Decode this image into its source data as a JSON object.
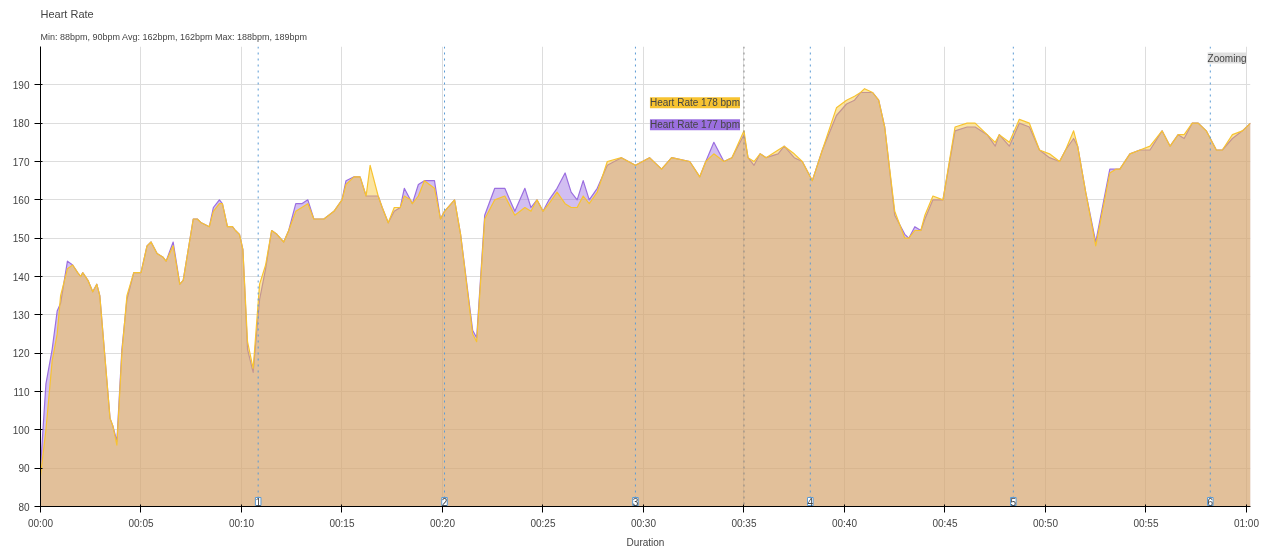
{
  "chart_data": {
    "type": "area",
    "title": "Heart Rate",
    "subtitle": "Min: 88bpm, 90bpm Avg: 162bpm, 162bpm Max: 188bpm, 189bpm",
    "xlabel": "Duration",
    "x": [
      0,
      0.27,
      0.58,
      0.83,
      1.0,
      1.34,
      1.6,
      1.85,
      2.0,
      2.1,
      2.36,
      2.6,
      2.8,
      2.95,
      3.3,
      3.46,
      3.6,
      3.8,
      4.05,
      4.3,
      4.64,
      5.0,
      5.3,
      5.5,
      5.8,
      6.1,
      6.25,
      6.6,
      6.93,
      7.1,
      7.6,
      7.8,
      8.0,
      8.4,
      8.6,
      8.9,
      9.05,
      9.3,
      9.55,
      9.7,
      9.9,
      10.07,
      10.3,
      10.58,
      10.9,
      11.2,
      11.5,
      11.76,
      12.1,
      12.35,
      12.7,
      13.0,
      13.3,
      13.6,
      14.1,
      14.6,
      15.0,
      15.2,
      15.6,
      15.9,
      16.2,
      16.4,
      16.8,
      17.0,
      17.3,
      17.6,
      17.9,
      18.1,
      18.4,
      18.5,
      18.8,
      19.1,
      19.6,
      19.9,
      20.1,
      20.6,
      20.9,
      21.5,
      21.7,
      22.1,
      22.6,
      23.1,
      23.6,
      24.1,
      24.4,
      24.7,
      25.0,
      25.3,
      25.7,
      26.1,
      26.4,
      26.7,
      27.0,
      27.3,
      27.7,
      28.2,
      28.9,
      29.6,
      30.3,
      30.9,
      31.4,
      32.3,
      32.8,
      33.1,
      33.5,
      34.0,
      34.4,
      35.0,
      35.2,
      35.5,
      35.8,
      36.1,
      36.7,
      37.0,
      37.5,
      37.9,
      38.4,
      38.9,
      39.6,
      40.1,
      40.5,
      40.8,
      41.0,
      41.4,
      41.7,
      42.0,
      42.5,
      43.0,
      43.2,
      43.5,
      43.8,
      44.0,
      44.4,
      44.9,
      45.5,
      46.1,
      46.5,
      47.1,
      47.5,
      47.7,
      48.2,
      48.7,
      49.2,
      49.7,
      50.2,
      50.7,
      51.0,
      51.4,
      51.6,
      52.0,
      52.5,
      53.2,
      53.5,
      53.7,
      54.2,
      54.7,
      55.2,
      55.8,
      56.2,
      56.6,
      56.9,
      57.3,
      57.6,
      58.0,
      58.5,
      58.8,
      59.3,
      59.8,
      60.2
    ],
    "series": [
      {
        "color": "#9b6fe0",
        "values": [
          90,
          112,
          121,
          131,
          133,
          144,
          143,
          141,
          140,
          141,
          139,
          136,
          138,
          135,
          113,
          103,
          101,
          97,
          121,
          134,
          141,
          141,
          148,
          149,
          146,
          145,
          144,
          149,
          138,
          139,
          155,
          155,
          154,
          153,
          158,
          160,
          159,
          153,
          153,
          152,
          151,
          147,
          121,
          115,
          134,
          142,
          152,
          151,
          149,
          152,
          159,
          159,
          160,
          155,
          155,
          157,
          160,
          165,
          166,
          166,
          161,
          161,
          161,
          158,
          154,
          157,
          158,
          163,
          160,
          159,
          164,
          165,
          165,
          155,
          157,
          160,
          151,
          126,
          124,
          156,
          163,
          163,
          157,
          163,
          158,
          160,
          157,
          160,
          163,
          167,
          162,
          160,
          165,
          160,
          163,
          169,
          171,
          169,
          171,
          168,
          171,
          170,
          166,
          170,
          175,
          170,
          171,
          177,
          171,
          169,
          172,
          171,
          172,
          174,
          171,
          170,
          165,
          173,
          182,
          185,
          186,
          188,
          188,
          188,
          186,
          179,
          156,
          151,
          150,
          153,
          152,
          155,
          160,
          160,
          178,
          179,
          179,
          177,
          174,
          177,
          174,
          180,
          179,
          173,
          171,
          170,
          173,
          176,
          174,
          162,
          149,
          168,
          168,
          168,
          172,
          173,
          173,
          178,
          174,
          177,
          176,
          180,
          180,
          178,
          173,
          173,
          176,
          178,
          180
        ]
      },
      {
        "color": "#f7c331",
        "values": [
          88,
          100,
          118,
          125,
          135,
          142,
          143,
          141,
          140,
          141,
          139,
          136,
          138,
          135,
          113,
          103,
          101,
          96,
          120,
          135,
          141,
          141,
          148,
          149,
          146,
          145,
          144,
          148,
          138,
          139,
          155,
          155,
          154,
          153,
          157,
          159,
          159,
          153,
          153,
          152,
          151,
          147,
          123,
          116,
          138,
          143,
          152,
          151,
          149,
          152,
          157,
          158,
          159,
          155,
          155,
          157,
          160,
          164,
          166,
          166,
          161,
          169,
          161,
          158,
          154,
          158,
          158,
          161,
          160,
          159,
          161,
          165,
          163,
          155,
          157,
          160,
          151,
          125,
          123,
          155,
          160,
          161,
          156,
          158,
          157,
          160,
          157,
          159,
          162,
          159,
          158,
          158,
          161,
          159,
          162,
          170,
          171,
          169,
          171,
          168,
          171,
          170,
          166,
          170,
          172,
          170,
          171,
          178,
          171,
          170,
          172,
          171,
          173,
          174,
          172,
          170,
          165,
          173,
          184,
          186,
          187,
          188,
          189,
          188,
          186,
          179,
          157,
          150,
          150,
          152,
          152,
          156,
          161,
          160,
          179,
          180,
          180,
          177,
          175,
          177,
          175,
          181,
          180,
          173,
          172,
          170,
          173,
          178,
          174,
          162,
          148,
          167,
          168,
          168,
          172,
          173,
          174,
          178,
          174,
          177,
          177,
          180,
          180,
          178,
          173,
          173,
          177,
          178,
          180
        ]
      }
    ],
    "xlim": [
      0,
      60.2
    ],
    "ylim": [
      80,
      200
    ],
    "xticks": [
      {
        "value": 0,
        "label": "00:00"
      },
      {
        "value": 5,
        "label": "00:05"
      },
      {
        "value": 10,
        "label": "00:10"
      },
      {
        "value": 15,
        "label": "00:15"
      },
      {
        "value": 20,
        "label": "00:20"
      },
      {
        "value": 25,
        "label": "00:25"
      },
      {
        "value": 30,
        "label": "00:30"
      },
      {
        "value": 35,
        "label": "00:35"
      },
      {
        "value": 40,
        "label": "00:40"
      },
      {
        "value": 45,
        "label": "00:45"
      },
      {
        "value": 50,
        "label": "00:50"
      },
      {
        "value": 55,
        "label": "00:55"
      },
      {
        "value": 60,
        "label": "01:00"
      }
    ],
    "yticks": [
      80,
      90,
      100,
      110,
      120,
      130,
      140,
      150,
      160,
      170,
      180,
      190
    ],
    "grid": true,
    "ref_lines": [
      {
        "axis": "x",
        "value": 10.83,
        "color": "#5b9bd5",
        "line_style": "dotted"
      },
      {
        "axis": "x",
        "value": 20.1,
        "color": "#5b9bd5",
        "line_style": "dotted"
      },
      {
        "axis": "x",
        "value": 29.6,
        "color": "#5b9bd5",
        "line_style": "dotted"
      },
      {
        "axis": "x",
        "value": 38.3,
        "color": "#5b9bd5",
        "line_style": "dotted"
      },
      {
        "axis": "x",
        "value": 48.4,
        "color": "#5b9bd5",
        "line_style": "dotted"
      },
      {
        "axis": "x",
        "value": 58.2,
        "color": "#5b9bd5",
        "line_style": "dotted"
      },
      {
        "axis": "x",
        "value": 35,
        "color": "#888888",
        "line_style": "dotted"
      }
    ],
    "annotations": [
      {
        "text": "Heart Rate 178 bpm",
        "x": 35,
        "y": 178
      },
      {
        "text": "Heart Rate 177 bpm",
        "x": 35,
        "y": 177
      },
      {
        "text": "1",
        "x": 10.83,
        "y": 80
      },
      {
        "text": "2",
        "x": 20.1,
        "y": 80
      },
      {
        "text": "3",
        "x": 29.6,
        "y": 80
      },
      {
        "text": "4",
        "x": 38.3,
        "y": 80
      },
      {
        "text": "5",
        "x": 48.4,
        "y": 80
      },
      {
        "text": "6",
        "x": 58.2,
        "y": 80
      },
      "Zooming"
    ]
  }
}
